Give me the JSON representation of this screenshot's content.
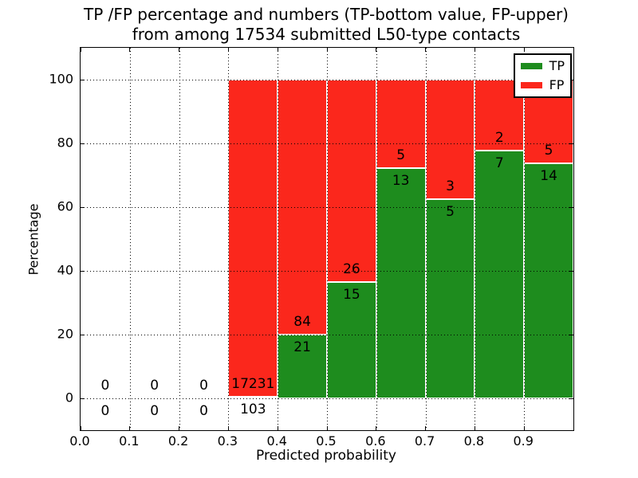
{
  "header": {
    "title_line1": "TP /FP percentage and numbers (TP-bottom value, FP-upper)",
    "title_line2": "from among 17534 submitted L50-type contacts"
  },
  "chart_data": {
    "type": "bar",
    "stacked": true,
    "normalized_to_percent": true,
    "title": "TP /FP percentage and numbers (TP-bottom value, FP-upper) from among 17534 submitted L50-type contacts",
    "xlabel": "Predicted probability",
    "ylabel": "Percentage",
    "xlim": [
      0.0,
      1.0
    ],
    "ylim": [
      -10,
      110
    ],
    "xticks": [
      "0.0",
      "0.1",
      "0.2",
      "0.3",
      "0.4",
      "0.5",
      "0.6",
      "0.7",
      "0.8",
      "0.9"
    ],
    "yticks": [
      0,
      20,
      40,
      60,
      80,
      100
    ],
    "grid": "dotted",
    "legend_position": "upper right",
    "total_contacts": 17534,
    "legend": [
      {
        "label": "TP",
        "color": "#1e8c1e"
      },
      {
        "label": "FP",
        "color": "#fb271c"
      }
    ],
    "bins": [
      {
        "range": [
          0.0,
          0.1
        ],
        "tp": 0,
        "fp": 0
      },
      {
        "range": [
          0.1,
          0.2
        ],
        "tp": 0,
        "fp": 0
      },
      {
        "range": [
          0.2,
          0.3
        ],
        "tp": 0,
        "fp": 0
      },
      {
        "range": [
          0.3,
          0.4
        ],
        "tp": 103,
        "fp": 17231
      },
      {
        "range": [
          0.4,
          0.5
        ],
        "tp": 21,
        "fp": 84
      },
      {
        "range": [
          0.5,
          0.6
        ],
        "tp": 15,
        "fp": 26
      },
      {
        "range": [
          0.6,
          0.7
        ],
        "tp": 13,
        "fp": 5
      },
      {
        "range": [
          0.7,
          0.8
        ],
        "tp": 5,
        "fp": 3
      },
      {
        "range": [
          0.8,
          0.9
        ],
        "tp": 7,
        "fp": 2
      },
      {
        "range": [
          0.9,
          1.0
        ],
        "tp": 14,
        "fp": 5
      }
    ]
  }
}
